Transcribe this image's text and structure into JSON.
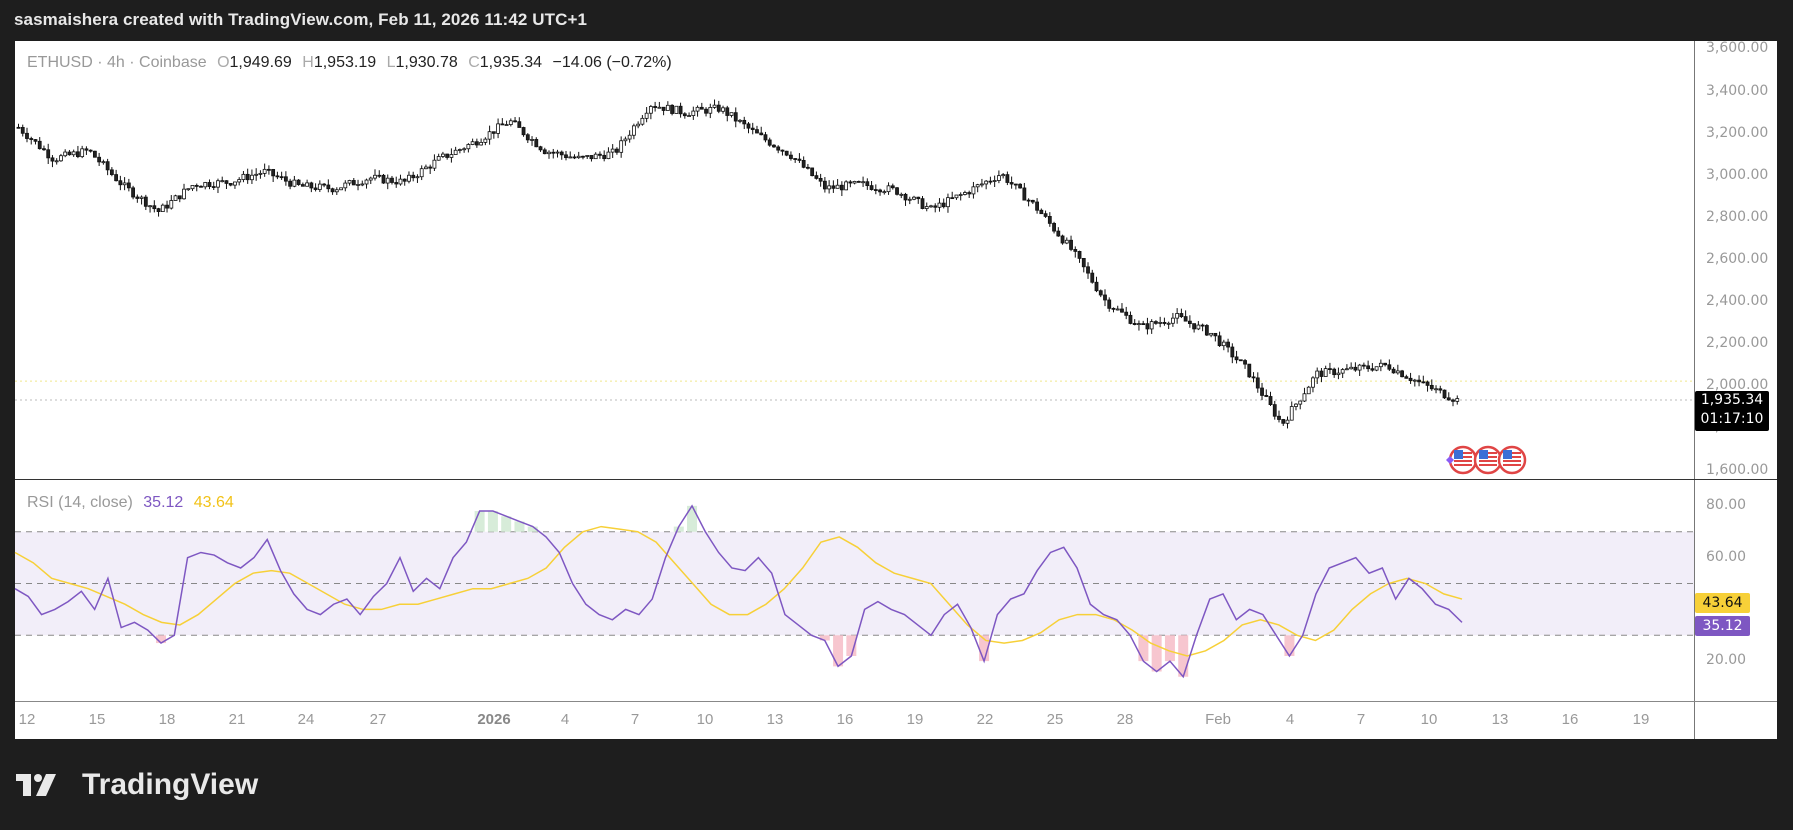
{
  "header": {
    "caption": "sasmaishera created with TradingView.com, Feb 11, 2026 11:42 UTC+1"
  },
  "legend": {
    "symbol": "ETHUSD · 4h · Coinbase",
    "open_label": "O",
    "open": "1,949.69",
    "high_label": "H",
    "high": "1,953.19",
    "low_label": "L",
    "low": "1,930.78",
    "close_label": "C",
    "close": "1,935.34",
    "change": "−14.06 (−0.72%)"
  },
  "rsi_legend": {
    "label": "RSI (14, close)",
    "rsi": "35.12",
    "ma": "43.64"
  },
  "price_tag": {
    "price": "1,935.34",
    "countdown": "01:17:10"
  },
  "rsi_tags": {
    "ma": "43.64",
    "rsi": "35.12"
  },
  "colors": {
    "rsi": "#7e57c2",
    "rsi_ma": "#f7d038",
    "band": "#f2eef9",
    "candle": "#111111",
    "last_price_line": "#f0e68c"
  },
  "footer": {
    "logo_text": "TradingView"
  },
  "chart_data": [
    {
      "type": "candlestick",
      "title": "ETHUSD · 4h · Coinbase",
      "ylabel": "Price (USD)",
      "ylim": [
        1600,
        3600
      ],
      "yticks": [
        "3,600.00",
        "3,400.00",
        "3,200.00",
        "3,000.00",
        "2,800.00",
        "2,600.00",
        "2,400.00",
        "2,200.00",
        "2,000.00",
        "1,800.00",
        "1,600.00"
      ],
      "xticks": [
        "12",
        "15",
        "18",
        "21",
        "24",
        "27",
        "2026",
        "4",
        "7",
        "10",
        "13",
        "16",
        "19",
        "22",
        "25",
        "28",
        "Feb",
        "4",
        "7",
        "10",
        "13",
        "16",
        "19"
      ],
      "last_price": 1935.34,
      "ohlc_last": {
        "open": 1949.69,
        "high": 1953.19,
        "low": 1930.78,
        "close": 1935.34,
        "change": -14.06,
        "change_pct": -0.72
      },
      "approx_path": [
        {
          "date": "Dec 12",
          "close": 3230
        },
        {
          "date": "Dec 13",
          "close": 3080
        },
        {
          "date": "Dec 15",
          "close": 3120
        },
        {
          "date": "Dec 16",
          "close": 2950
        },
        {
          "date": "Dec 18",
          "close": 2830
        },
        {
          "date": "Dec 19",
          "close": 2960
        },
        {
          "date": "Dec 21",
          "close": 2970
        },
        {
          "date": "Dec 22",
          "close": 3020
        },
        {
          "date": "Dec 24",
          "close": 2950
        },
        {
          "date": "Dec 27",
          "close": 2940
        },
        {
          "date": "Dec 29",
          "close": 2990
        },
        {
          "date": "Dec 31",
          "close": 2970
        },
        {
          "date": "Jan 2",
          "close": 3080
        },
        {
          "date": "Jan 5",
          "close": 3160
        },
        {
          "date": "Jan 6",
          "close": 3260
        },
        {
          "date": "Jan 8",
          "close": 3120
        },
        {
          "date": "Jan 10",
          "close": 3080
        },
        {
          "date": "Jan 12",
          "close": 3110
        },
        {
          "date": "Jan 14",
          "close": 3340
        },
        {
          "date": "Jan 16",
          "close": 3300
        },
        {
          "date": "Jan 18",
          "close": 3320
        },
        {
          "date": "Jan 19",
          "close": 3200
        },
        {
          "date": "Jan 20",
          "close": 3100
        },
        {
          "date": "Jan 21",
          "close": 2940
        },
        {
          "date": "Jan 22",
          "close": 2960
        },
        {
          "date": "Jan 24",
          "close": 2930
        },
        {
          "date": "Jan 25",
          "close": 2840
        },
        {
          "date": "Jan 27",
          "close": 2920
        },
        {
          "date": "Jan 28",
          "close": 3010
        },
        {
          "date": "Jan 29",
          "close": 2850
        },
        {
          "date": "Jan 31",
          "close": 2650
        },
        {
          "date": "Feb 1",
          "close": 2400
        },
        {
          "date": "Feb 2",
          "close": 2280
        },
        {
          "date": "Feb 3",
          "close": 2330
        },
        {
          "date": "Feb 4",
          "close": 2250
        },
        {
          "date": "Feb 5",
          "close": 2080
        },
        {
          "date": "Feb 6",
          "close": 1820
        },
        {
          "date": "Feb 7",
          "close": 2060
        },
        {
          "date": "Feb 8",
          "close": 2080
        },
        {
          "date": "Feb 9",
          "close": 2100
        },
        {
          "date": "Feb 10",
          "close": 2010
        },
        {
          "date": "Feb 11",
          "close": 1935.34
        }
      ]
    },
    {
      "type": "line",
      "title": "RSI (14, close)",
      "ylim": [
        5,
        90
      ],
      "yticks": [
        "80.00",
        "60.00",
        "40.00",
        "20.00"
      ],
      "bands": {
        "upper": 70,
        "middle": 50,
        "lower": 30
      },
      "series": [
        {
          "name": "RSI",
          "color": "#7e57c2",
          "last": 35.12
        },
        {
          "name": "RSI-based MA",
          "color": "#f7d038",
          "last": 43.64
        }
      ],
      "approx_rsi": [
        48,
        45,
        38,
        40,
        43,
        47,
        40,
        52,
        33,
        35,
        32,
        27,
        30,
        60,
        62,
        61,
        58,
        56,
        60,
        67,
        55,
        46,
        40,
        38,
        42,
        44,
        38,
        45,
        50,
        60,
        47,
        52,
        48,
        60,
        66,
        78,
        78,
        76,
        74,
        72,
        68,
        62,
        50,
        42,
        38,
        36,
        40,
        38,
        44,
        60,
        72,
        80,
        70,
        62,
        56,
        55,
        60,
        54,
        38,
        34,
        30,
        28,
        18,
        22,
        40,
        43,
        40,
        38,
        34,
        30,
        38,
        42,
        33,
        20,
        38,
        44,
        46,
        55,
        62,
        64,
        56,
        42,
        38,
        36,
        30,
        20,
        16,
        20,
        14,
        30,
        44,
        46,
        36,
        40,
        38,
        30,
        22,
        30,
        46,
        56,
        58,
        60,
        54,
        56,
        44,
        52,
        48,
        42,
        40,
        35
      ],
      "approx_ma": [
        62,
        58,
        52,
        50,
        48,
        45,
        42,
        38,
        35,
        34,
        38,
        44,
        50,
        54,
        55,
        54,
        50,
        46,
        42,
        40,
        40,
        42,
        42,
        44,
        46,
        48,
        48,
        50,
        52,
        56,
        64,
        70,
        72,
        71,
        70,
        66,
        58,
        50,
        42,
        38,
        38,
        42,
        48,
        56,
        66,
        68,
        64,
        58,
        54,
        52,
        50,
        42,
        34,
        28,
        27,
        28,
        31,
        36,
        38,
        38,
        36,
        32,
        27,
        24,
        22,
        24,
        28,
        34,
        36,
        34,
        30,
        28,
        32,
        40,
        46,
        50,
        52,
        50,
        46,
        44
      ]
    }
  ]
}
